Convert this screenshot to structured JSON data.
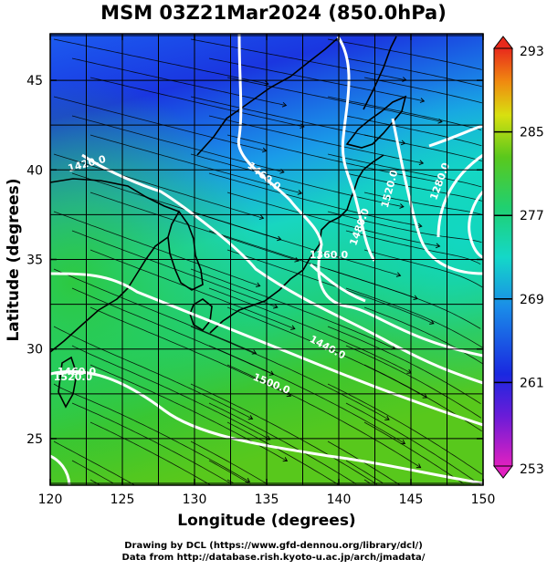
{
  "title": "MSM 03Z21Mar2024 (850.0hPa)",
  "chart_data": {
    "type": "heatmap",
    "x_axis": {
      "label": "Longitude (degrees)",
      "range": [
        120,
        150
      ],
      "ticks": [
        "120",
        "125",
        "130",
        "135",
        "140",
        "145",
        "150"
      ]
    },
    "y_axis": {
      "label": "Latitude  (degrees)",
      "range": [
        22.4,
        47.6
      ],
      "ticks": [
        "25",
        "30",
        "35",
        "40",
        "45"
      ]
    },
    "grid": true,
    "colorbar": {
      "range": [
        253,
        293
      ],
      "ticks": [
        "253",
        "261",
        "269",
        "277",
        "285",
        "293"
      ]
    },
    "contour_labels": [
      "1460.0",
      "1520.0",
      "1280.0",
      "1440.0",
      "1500.0",
      "1420.0",
      "1480.0",
      "1360.0",
      "1460.0",
      "1520.0"
    ],
    "streamlines": true
  },
  "credits": {
    "line1": "Drawing by DCL (https://www.gfd-dennou.org/library/dcl/)",
    "line2": "Data from http://database.rish.kyoto-u.ac.jp/arch/jmadata/"
  },
  "colors": {
    "cold": "#1a2ee0",
    "mid": "#18d0b8",
    "warm": "#3cc82a",
    "hot": "#e8301c",
    "contour": "#ffffff"
  }
}
